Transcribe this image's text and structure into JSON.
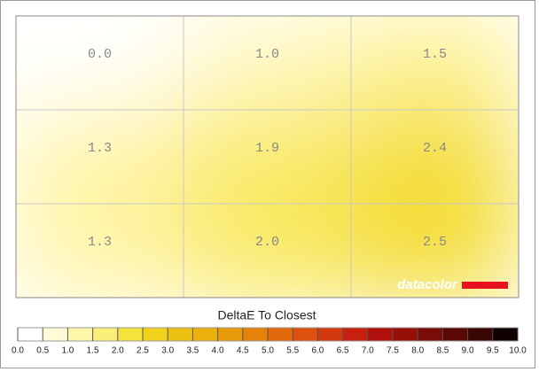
{
  "chart_data": {
    "type": "heatmap",
    "title": "DeltaE To Closest",
    "brand": "datacolor",
    "values": [
      [
        0.0,
        1.0,
        1.5
      ],
      [
        1.3,
        1.9,
        2.4
      ],
      [
        1.3,
        2.0,
        2.5
      ]
    ],
    "value_labels": [
      [
        "0.0",
        "1.0",
        "1.5"
      ],
      [
        "1.3",
        "1.9",
        "2.4"
      ],
      [
        "1.3",
        "2.0",
        "2.5"
      ]
    ],
    "grid": true,
    "scale_ticks": [
      {
        "value": 0,
        "label": "0.0"
      },
      0.5,
      {
        "value": 1,
        "label": "1.0"
      },
      1.5,
      {
        "value": 2,
        "label": "2.0"
      },
      2.5,
      {
        "value": 3,
        "label": "3.0"
      },
      3.5,
      {
        "value": 4,
        "label": "4.0"
      },
      4.5,
      {
        "value": 5,
        "label": "5.0"
      },
      5.5,
      {
        "value": 6,
        "label": "6.0"
      },
      6.5,
      {
        "value": 7,
        "label": "7.0"
      },
      7.5,
      {
        "value": 8,
        "label": "8.0"
      },
      8.5,
      {
        "value": 9,
        "label": "9.0"
      },
      9.5,
      {
        "value": 10,
        "label": "10.0"
      }
    ],
    "scale_colors": [
      "#ffffff",
      "#fffbd8",
      "#fff5a8",
      "#fbee78",
      "#f5e23a",
      "#f0d21a",
      "#edc110",
      "#ebb00c",
      "#e89a0a",
      "#e5820a",
      "#e26a0c",
      "#dd500e",
      "#d4380e",
      "#c8200e",
      "#b0100c",
      "#961008",
      "#7a0c08",
      "#5a0a06",
      "#3a0604",
      "#100000"
    ]
  }
}
